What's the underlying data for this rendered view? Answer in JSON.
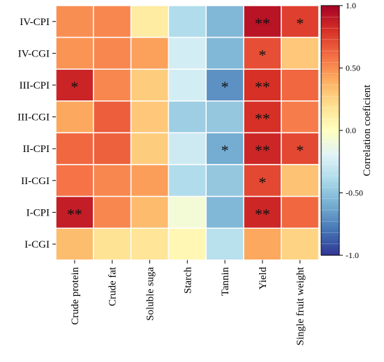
{
  "chart_data": {
    "type": "heatmap",
    "rows": [
      "IV-CPI",
      "IV-CGI",
      "III-CPI",
      "III-CGI",
      "II-CPI",
      "II-CGI",
      "I-CPI",
      "I-CGI"
    ],
    "columns": [
      "Crude protein",
      "Crude fat",
      "Soluble suga",
      "Starch",
      "Tannin",
      "Yield",
      "Single fruit weight"
    ],
    "values": [
      [
        0.5,
        0.52,
        0.12,
        -0.38,
        -0.55,
        0.92,
        0.75
      ],
      [
        0.48,
        0.52,
        0.44,
        -0.25,
        -0.55,
        0.7,
        0.3
      ],
      [
        0.85,
        0.52,
        0.28,
        -0.25,
        -0.7,
        0.8,
        0.62
      ],
      [
        0.42,
        0.65,
        0.3,
        -0.45,
        -0.48,
        0.8,
        0.55
      ],
      [
        0.62,
        0.64,
        0.28,
        -0.27,
        -0.6,
        0.84,
        0.72
      ],
      [
        0.58,
        0.52,
        0.45,
        -0.38,
        -0.48,
        0.72,
        0.32
      ],
      [
        0.88,
        0.52,
        0.35,
        -0.08,
        -0.55,
        0.84,
        0.62
      ],
      [
        0.34,
        0.18,
        0.17,
        0.05,
        -0.35,
        0.42,
        0.25
      ]
    ],
    "significance": [
      [
        "",
        "",
        "",
        "",
        "",
        "**",
        "*"
      ],
      [
        "",
        "",
        "",
        "",
        "",
        "*",
        ""
      ],
      [
        "*",
        "",
        "",
        "",
        "*",
        "**",
        ""
      ],
      [
        "",
        "",
        "",
        "",
        "",
        "**",
        ""
      ],
      [
        "",
        "",
        "",
        "",
        "*",
        "**",
        "*"
      ],
      [
        "",
        "",
        "",
        "",
        "",
        "*",
        ""
      ],
      [
        "**",
        "",
        "",
        "",
        "",
        "**",
        ""
      ],
      [
        "",
        "",
        "",
        "",
        "",
        "",
        ""
      ]
    ],
    "colorbar": {
      "label": "Correlation coeficient",
      "range": [
        -1.0,
        1.0
      ],
      "ticks": [
        1.0,
        0.5,
        0.0,
        -0.5,
        -1.0
      ],
      "tick_labels": [
        "1.0",
        "0.50",
        "0.0",
        "-0.50",
        "-1.0"
      ],
      "colormap": "RdYlBu_r"
    },
    "grid": false
  },
  "colors": {
    "cell_border": "#ffffff",
    "colormap_stops": [
      "#313695",
      "#4575b4",
      "#74add1",
      "#abd9e9",
      "#e0f3f8",
      "#ffffbf",
      "#fee090",
      "#fdae61",
      "#f46d43",
      "#d73027",
      "#a50026"
    ]
  }
}
